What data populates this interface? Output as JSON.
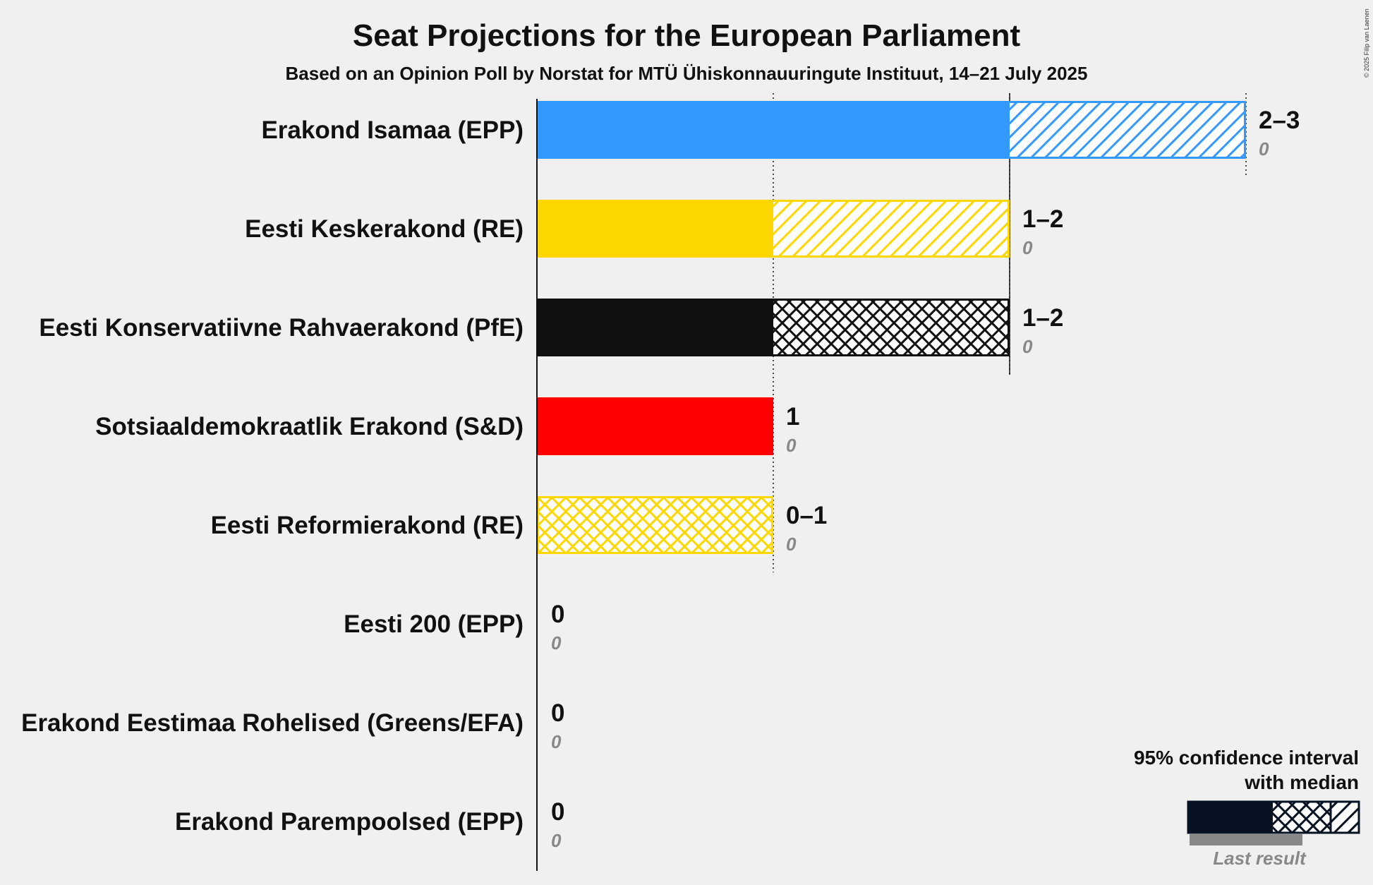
{
  "title": "Seat Projections for the European Parliament",
  "subtitle": "Based on an Opinion Poll by Norstat for MTÜ Ühiskonnauuringute Instituut, 14–21 July 2025",
  "copyright": "© 2025 Filip van Laenen",
  "legend": {
    "line1": "95% confidence interval",
    "line2": "with median",
    "last_result": "Last result"
  },
  "chart_data": {
    "type": "bar",
    "orientation": "horizontal",
    "title": "Seat Projections for the European Parliament",
    "subtitle": "Based on an Opinion Poll by Norstat for MTÜ Ühiskonnauuringute Instituut, 14–21 July 2025",
    "xlim": [
      0,
      3
    ],
    "gridlines": [
      1,
      2,
      3
    ],
    "categories": [
      "Erakond Isamaa (EPP)",
      "Eesti Keskerakond (RE)",
      "Eesti Konservatiivne Rahvaerakond (PfE)",
      "Sotsiaaldemokraatlik Erakond (S&D)",
      "Eesti Reformierakond (RE)",
      "Eesti 200 (EPP)",
      "Erakond Eestimaa Rohelised (Greens/EFA)",
      "Erakond Parempoolsed (EPP)"
    ],
    "series": [
      {
        "name": "Erakond Isamaa (EPP)",
        "low": 2,
        "median": 2,
        "high": 3,
        "label": "2–3",
        "last_result": 0,
        "last_label": "0",
        "color": "#3399FF",
        "hatch": "diagonal"
      },
      {
        "name": "Eesti Keskerakond (RE)",
        "low": 1,
        "median": 1,
        "high": 2,
        "label": "1–2",
        "last_result": 0,
        "last_label": "0",
        "color": "#FFD700",
        "hatch": "diagonal"
      },
      {
        "name": "Eesti Konservatiivne Rahvaerakond (PfE)",
        "low": 1,
        "median": 2,
        "high": 2,
        "label": "1–2",
        "last_result": 0,
        "last_label": "0",
        "color": "#111111",
        "hatch": "cross"
      },
      {
        "name": "Sotsiaaldemokraatlik Erakond (S&D)",
        "low": 1,
        "median": 1,
        "high": 1,
        "label": "1",
        "last_result": 0,
        "last_label": "0",
        "color": "#FF0000",
        "hatch": "none"
      },
      {
        "name": "Eesti Reformierakond (RE)",
        "low": 0,
        "median": 1,
        "high": 1,
        "label": "0–1",
        "last_result": 0,
        "last_label": "0",
        "color": "#FFD700",
        "hatch": "cross"
      },
      {
        "name": "Eesti 200 (EPP)",
        "low": 0,
        "median": 0,
        "high": 0,
        "label": "0",
        "last_result": 0,
        "last_label": "0",
        "color": "#3399FF",
        "hatch": "none"
      },
      {
        "name": "Erakond Eestimaa Rohelised (Greens/EFA)",
        "low": 0,
        "median": 0,
        "high": 0,
        "label": "0",
        "last_result": 0,
        "last_label": "0",
        "color": "#33AA33",
        "hatch": "none"
      },
      {
        "name": "Erakond Parempoolsed (EPP)",
        "low": 0,
        "median": 0,
        "high": 0,
        "label": "0",
        "last_result": 0,
        "last_label": "0",
        "color": "#3399FF",
        "hatch": "none"
      }
    ]
  }
}
